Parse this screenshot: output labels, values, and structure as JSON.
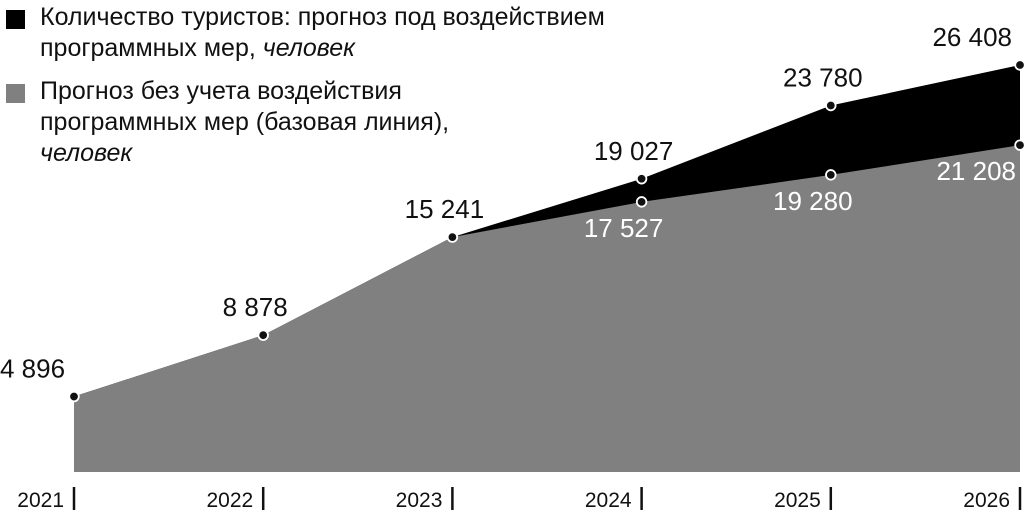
{
  "legend": {
    "program": {
      "line1": "Количество туристов: прогноз под воздействием",
      "line2_main": "программных мер, ",
      "line2_unit": "человек"
    },
    "baseline": {
      "line1": "Прогноз без учета воздействия",
      "line2_main": "программных мер (базовая линия),",
      "line3_unit": "человек"
    }
  },
  "chart_data": {
    "type": "area",
    "x": [
      "2021",
      "2022",
      "2023",
      "2024",
      "2025",
      "2026"
    ],
    "series": [
      {
        "name": "Количество туристов: прогноз под воздействием программных мер, человек",
        "values": [
          4896,
          8878,
          15241,
          19027,
          23780,
          26408
        ],
        "labels": [
          "4 896",
          "8 878",
          "15 241",
          "19 027",
          "23 780",
          "26 408"
        ],
        "color": "#000000"
      },
      {
        "name": "Прогноз без учета воздействия программных мер (базовая линия), человек",
        "values": [
          4896,
          8878,
          15241,
          17527,
          19280,
          21208
        ],
        "labels": [
          "",
          "",
          "",
          "17 527",
          "19 280",
          "21 208"
        ],
        "color": "#808080"
      }
    ],
    "legend": "top-left",
    "grid": false
  }
}
